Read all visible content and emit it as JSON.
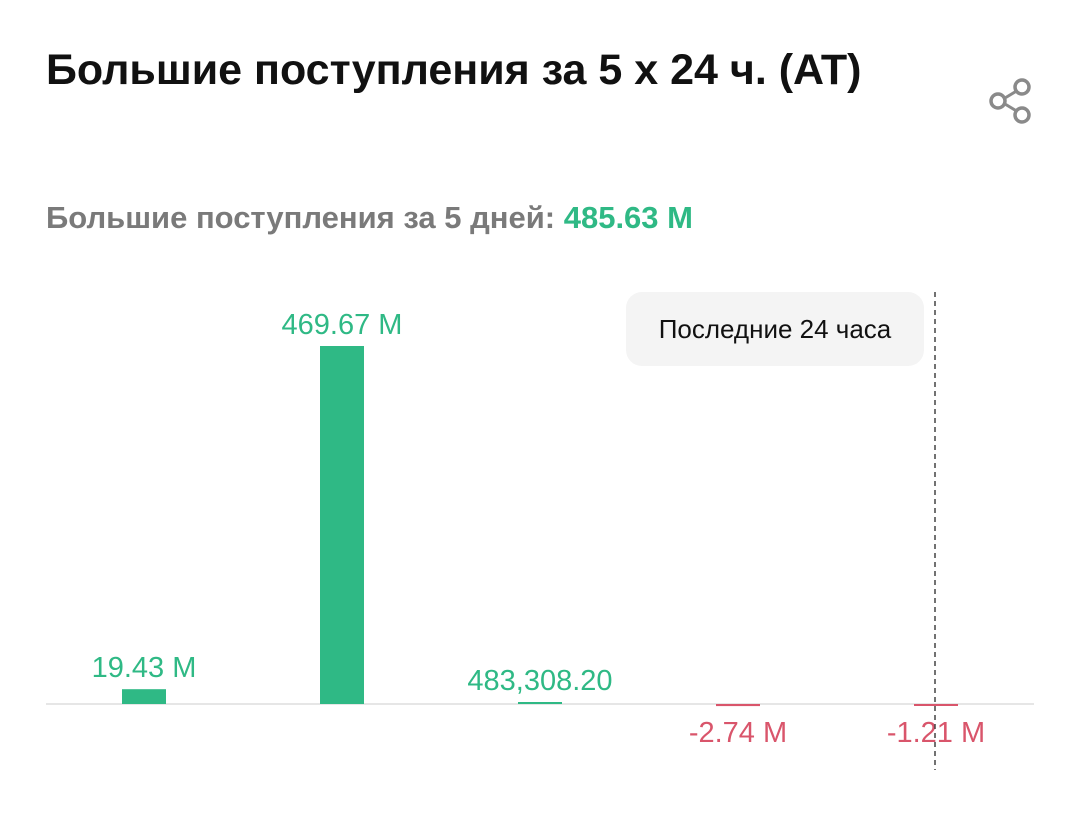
{
  "header": {
    "title": "Большие поступления за 5 х 24 ч. (AT)",
    "share_icon": "share-icon"
  },
  "summary": {
    "label": "Большие поступления за 5 дней:",
    "value": "485.63 M"
  },
  "tooltip": {
    "text": "Последние 24 часа"
  },
  "colors": {
    "positive": "#2fb985",
    "negative": "#d9556b",
    "axis": "#e6e6e6",
    "divider": "#444444"
  },
  "chart_data": {
    "type": "bar",
    "title": "Большие поступления за 5 х 24 ч. (AT)",
    "categories": [
      "",
      "",
      "",
      "",
      ""
    ],
    "values": [
      19430000,
      469670000,
      483308.2,
      -2740000,
      -1210000
    ],
    "labels": [
      "19.43 M",
      "469.67 M",
      "483,308.20",
      "-2.74 M",
      "-1.21 M"
    ],
    "annotation": "Последние 24 часа",
    "grid": false
  }
}
